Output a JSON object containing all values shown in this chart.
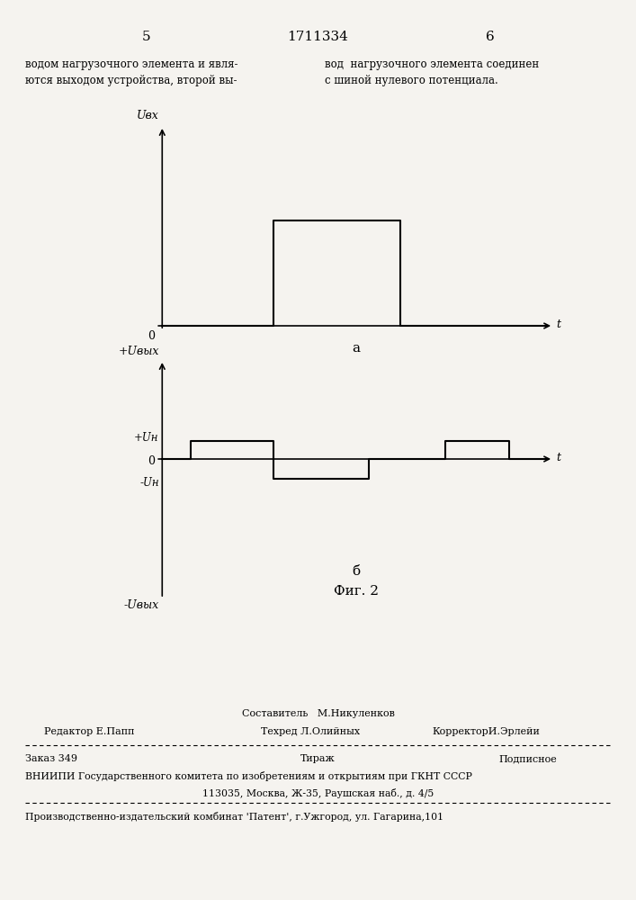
{
  "page_number_left": "5",
  "page_number_center": "1711334",
  "page_number_right": "6",
  "text_left": "водом нагрузочного элемента и явля-\nются выходом устройства, второй вы-",
  "text_right": "вод  нагрузочного элемента соединен\nс шиной нулевого потенциала.",
  "label_a": "а",
  "label_b": "б",
  "fig_label": "Фиг. 2",
  "y_label_top": "Uвх",
  "y_label_bottom_pos": "+Uвых",
  "y_label_bottom_neg": "-Uвых",
  "y_label_Un_pos": "+Uн",
  "y_label_Un_neg": "-Uн",
  "t_label": "t",
  "zero_label": "0",
  "footer_line1_center": "Составитель   М.Никуленков",
  "footer_line1_left": "Редактор Е.Папп",
  "footer_line2_center": "Техред Л.Олийных",
  "footer_line2_right": "КорректорИ.Эрлейи",
  "footer_zakazl": "Заказ 349",
  "footer_tirazh": "Тираж",
  "footer_podpisnoe": "Подписное",
  "footer_vniip1": "ВНИИПИ Государственного комитета по изобретениям и открытиям при ГКНТ СССР",
  "footer_vniip2": "113035, Москва, Ж-35, Раушская наб., д. 4/5",
  "footer_pik": "Производственно-издательский комбинат 'Патент', г.Ужгород, ул. Гагарина,101",
  "bg_color": "#f5f3ef"
}
